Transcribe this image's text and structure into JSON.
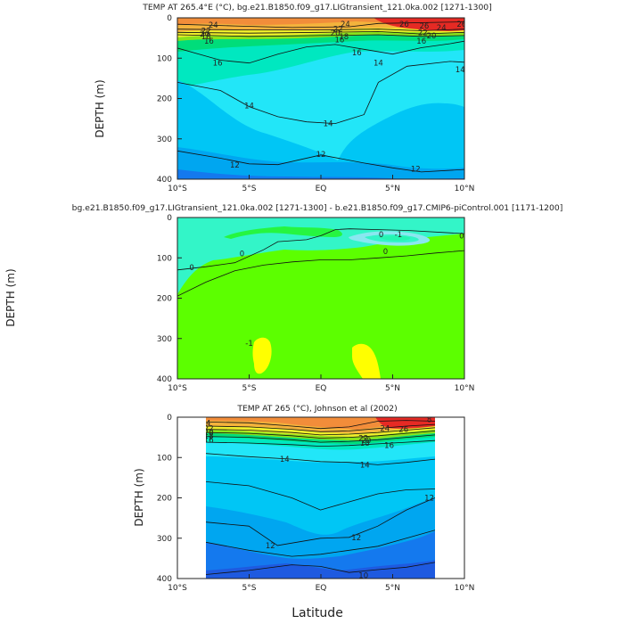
{
  "figure": {
    "x_common_label": "Latitude",
    "colors": {
      "c10": "#1e5ae0",
      "c11": "#1479ee",
      "c12": "#00a6f0",
      "c13": "#00c6f5",
      "c14": "#22e6f8",
      "c15": "#00e8c0",
      "c16": "#00dd7a",
      "c17": "#3fe33f",
      "c18": "#8ae21c",
      "c19": "#c8e51c",
      "c20": "#eeee2a",
      "c21": "#f7d23c",
      "c22": "#f4b33c",
      "c23": "#f2a242",
      "c24": "#f28d3a",
      "c25": "#ee6a2a",
      "c26": "#ea4a2a",
      "c27": "#e62a24",
      "c28": "#d81e2a",
      "d_cyan": "#33f5c8",
      "d_green": "#5cff00",
      "d_lime": "#26f540",
      "d_yellow": "#ffff00",
      "d_neg": "#8ae7f0"
    }
  },
  "chart_data": [
    {
      "type": "heatmap",
      "title": "TEMP AT 265.4°E (°C), bg.e21.B1850.f09_g17.LIGtransient_121.0ka.002 [1271-1300]",
      "xlabel": "",
      "ylabel": "DEPTH (m)",
      "x_ticks": [
        "10°S",
        "5°S",
        "EQ",
        "5°N",
        "10°N"
      ],
      "x_tick_values": [
        -10,
        -5,
        0,
        5,
        10
      ],
      "y_ticks": [
        "0",
        "100",
        "200",
        "300",
        "400"
      ],
      "y_tick_values": [
        0,
        100,
        200,
        300,
        400
      ],
      "xlim": [
        -10,
        10
      ],
      "ylim": [
        400,
        0
      ],
      "contour_labels": [
        {
          "text": "24",
          "x": -7.5,
          "y": 18
        },
        {
          "text": "22",
          "x": -8.0,
          "y": 32
        },
        {
          "text": "22",
          "x": 1.2,
          "y": 28
        },
        {
          "text": "20",
          "x": -8.1,
          "y": 40
        },
        {
          "text": "20",
          "x": 1.0,
          "y": 38
        },
        {
          "text": "18",
          "x": -8.0,
          "y": 46
        },
        {
          "text": "18",
          "x": 1.6,
          "y": 46
        },
        {
          "text": "16",
          "x": -7.8,
          "y": 58
        },
        {
          "text": "16",
          "x": 1.3,
          "y": 54
        },
        {
          "text": "16",
          "x": 7.0,
          "y": 58
        },
        {
          "text": "16",
          "x": -7.2,
          "y": 112
        },
        {
          "text": "16",
          "x": 2.5,
          "y": 86
        },
        {
          "text": "14",
          "x": 4.0,
          "y": 112
        },
        {
          "text": "14",
          "x": 9.7,
          "y": 128
        },
        {
          "text": "14",
          "x": -5.0,
          "y": 218
        },
        {
          "text": "14",
          "x": 0.5,
          "y": 262
        },
        {
          "text": "26",
          "x": 5.8,
          "y": 16
        },
        {
          "text": "26",
          "x": 7.2,
          "y": 20
        },
        {
          "text": "26",
          "x": 9.8,
          "y": 16
        },
        {
          "text": "24",
          "x": 1.7,
          "y": 16
        },
        {
          "text": "24",
          "x": 8.4,
          "y": 24
        },
        {
          "text": "22",
          "x": 7.1,
          "y": 36
        },
        {
          "text": "20",
          "x": 7.7,
          "y": 44
        },
        {
          "text": "12",
          "x": -6.0,
          "y": 365
        },
        {
          "text": "12",
          "x": 0.0,
          "y": 338
        },
        {
          "text": "12",
          "x": 6.6,
          "y": 375
        }
      ],
      "contour_lines": [
        {
          "level": 24,
          "points": [
            [
              -10,
              16
            ],
            [
              -6,
              20
            ],
            [
              -2,
              24
            ],
            [
              2,
              22
            ],
            [
              4,
              14
            ],
            [
              10,
              10
            ]
          ]
        },
        {
          "level": 22,
          "points": [
            [
              -10,
              28
            ],
            [
              -5,
              30
            ],
            [
              0,
              30
            ],
            [
              4,
              28
            ],
            [
              7,
              32
            ],
            [
              10,
              28
            ]
          ]
        },
        {
          "level": 20,
          "points": [
            [
              -10,
              36
            ],
            [
              -5,
              38
            ],
            [
              0,
              36
            ],
            [
              4,
              34
            ],
            [
              7,
              40
            ],
            [
              10,
              36
            ]
          ]
        },
        {
          "level": 18,
          "points": [
            [
              -10,
              42
            ],
            [
              -5,
              46
            ],
            [
              0,
              44
            ],
            [
              4,
              42
            ],
            [
              7,
              46
            ],
            [
              10,
              44
            ]
          ]
        },
        {
          "level": 16,
          "points": [
            [
              -10,
              75
            ],
            [
              -8,
              95
            ],
            [
              -7,
              105
            ],
            [
              -5,
              112
            ],
            [
              -3,
              90
            ],
            [
              -1,
              72
            ],
            [
              1,
              66
            ],
            [
              3,
              78
            ],
            [
              5,
              90
            ],
            [
              7,
              74
            ],
            [
              9,
              64
            ],
            [
              10,
              58
            ]
          ]
        },
        {
          "level": 14,
          "points": [
            [
              -10,
              160
            ],
            [
              -7,
              180
            ],
            [
              -5,
              220
            ],
            [
              -3,
              245
            ],
            [
              -1,
              258
            ],
            [
              1,
              262
            ],
            [
              3,
              240
            ],
            [
              4,
              160
            ],
            [
              6,
              120
            ],
            [
              9,
              108
            ],
            [
              10,
              110
            ]
          ]
        },
        {
          "level": 12,
          "points": [
            [
              -10,
              330
            ],
            [
              -7,
              348
            ],
            [
              -5,
              362
            ],
            [
              -3,
              364
            ],
            [
              0,
              340
            ],
            [
              3,
              360
            ],
            [
              5,
              372
            ],
            [
              7,
              382
            ],
            [
              10,
              376
            ]
          ]
        }
      ]
    },
    {
      "type": "heatmap",
      "title": "bg.e21.B1850.f09_g17.LIGtransient_121.0ka.002 [1271-1300] - b.e21.B1850.f09_g17.CMIP6-piControl.001 [1171-1200]",
      "xlabel": "",
      "ylabel": "DEPTH (m)",
      "x_ticks": [
        "10°S",
        "5°S",
        "EQ",
        "5°N",
        "10°N"
      ],
      "x_tick_values": [
        -10,
        -5,
        0,
        5,
        10
      ],
      "y_ticks": [
        "0",
        "100",
        "200",
        "300",
        "400"
      ],
      "y_tick_values": [
        0,
        100,
        200,
        300,
        400
      ],
      "xlim": [
        -10,
        10
      ],
      "ylim": [
        400,
        0
      ],
      "contour_labels": [
        {
          "text": "0",
          "x": -9.0,
          "y": 124
        },
        {
          "text": "0",
          "x": -5.5,
          "y": 90
        },
        {
          "text": "0",
          "x": 4.2,
          "y": 42
        },
        {
          "text": "0",
          "x": 4.5,
          "y": 84
        },
        {
          "text": "0",
          "x": 9.8,
          "y": 45
        },
        {
          "text": "-1",
          "x": 5.4,
          "y": 42
        },
        {
          "text": "-1",
          "x": -5.0,
          "y": 312
        }
      ],
      "contour_lines": [
        {
          "level": 0,
          "points": [
            [
              -10,
              195
            ],
            [
              -8,
              160
            ],
            [
              -6,
              132
            ],
            [
              -4,
              118
            ],
            [
              -2,
              110
            ],
            [
              0,
              105
            ],
            [
              2,
              105
            ],
            [
              4,
              100
            ],
            [
              6,
              95
            ],
            [
              8,
              88
            ],
            [
              10,
              82
            ]
          ]
        },
        {
          "level": 0,
          "points": [
            [
              -10,
              130
            ],
            [
              -8,
              122
            ],
            [
              -6,
              112
            ],
            [
              -4,
              80
            ],
            [
              -3,
              60
            ],
            [
              -1,
              55
            ],
            [
              0,
              45
            ],
            [
              1,
              30
            ],
            [
              2,
              28
            ],
            [
              4,
              30
            ],
            [
              6,
              32
            ],
            [
              10,
              40
            ]
          ]
        }
      ]
    },
    {
      "type": "heatmap",
      "title": "TEMP AT 265 (°C), Johnson et al (2002)",
      "xlabel": "Latitude",
      "ylabel": "DEPTH (m)",
      "x_ticks": [
        "10°S",
        "5°S",
        "EQ",
        "5°N",
        "10°N"
      ],
      "x_tick_values": [
        -10,
        -5,
        0,
        5,
        10
      ],
      "y_ticks": [
        "0",
        "100",
        "200",
        "300",
        "400"
      ],
      "y_tick_values": [
        0,
        100,
        200,
        300,
        400
      ],
      "xlim": [
        -10,
        10
      ],
      "ylim": [
        400,
        0
      ],
      "data_x_range": [
        -8,
        8
      ],
      "contour_labels": [
        {
          "text": "24",
          "x": -8.0,
          "y": 14
        },
        {
          "text": "22",
          "x": -7.8,
          "y": 28
        },
        {
          "text": "20",
          "x": -7.8,
          "y": 38
        },
        {
          "text": "18",
          "x": -7.8,
          "y": 46
        },
        {
          "text": "16",
          "x": -7.8,
          "y": 56
        },
        {
          "text": "14",
          "x": -2.5,
          "y": 104
        },
        {
          "text": "14",
          "x": 3.1,
          "y": 118
        },
        {
          "text": "12",
          "x": -3.5,
          "y": 318
        },
        {
          "text": "12",
          "x": 2.5,
          "y": 298
        },
        {
          "text": "12",
          "x": 7.6,
          "y": 200
        },
        {
          "text": "10",
          "x": 3.0,
          "y": 392
        },
        {
          "text": "10",
          "x": -7.0,
          "y": 408
        },
        {
          "text": "26",
          "x": 5.8,
          "y": 30
        },
        {
          "text": "24",
          "x": 4.5,
          "y": 28
        },
        {
          "text": "22",
          "x": 3.0,
          "y": 52
        },
        {
          "text": "20",
          "x": 3.2,
          "y": 58
        },
        {
          "text": "18",
          "x": 3.1,
          "y": 64
        },
        {
          "text": "16",
          "x": 4.8,
          "y": 70
        },
        {
          "text": "8",
          "x": 7.6,
          "y": 6
        }
      ],
      "contour_lines": [
        {
          "level": 24,
          "points": [
            [
              -8,
              12
            ],
            [
              -5,
              14
            ],
            [
              -2,
              22
            ],
            [
              0,
              28
            ],
            [
              2,
              24
            ],
            [
              4,
              10
            ],
            [
              6,
              8
            ],
            [
              8,
              10
            ]
          ]
        },
        {
          "level": 22,
          "points": [
            [
              -8,
              22
            ],
            [
              -5,
              24
            ],
            [
              -2,
              30
            ],
            [
              0,
              36
            ],
            [
              2,
              34
            ],
            [
              4,
              28
            ],
            [
              6,
              22
            ],
            [
              8,
              18
            ]
          ]
        },
        {
          "level": 20,
          "points": [
            [
              -8,
              30
            ],
            [
              -5,
              32
            ],
            [
              -2,
              38
            ],
            [
              0,
              44
            ],
            [
              2,
              42
            ],
            [
              4,
              38
            ],
            [
              6,
              32
            ],
            [
              8,
              26
            ]
          ]
        },
        {
          "level": 18,
          "points": [
            [
              -8,
              38
            ],
            [
              -5,
              40
            ],
            [
              -2,
              46
            ],
            [
              0,
              52
            ],
            [
              2,
              50
            ],
            [
              4,
              46
            ],
            [
              6,
              40
            ],
            [
              8,
              34
            ]
          ]
        },
        {
          "level": 16,
          "points": [
            [
              -8,
              48
            ],
            [
              -5,
              50
            ],
            [
              -2,
              56
            ],
            [
              0,
              62
            ],
            [
              2,
              60
            ],
            [
              4,
              56
            ],
            [
              6,
              50
            ],
            [
              8,
              44
            ]
          ]
        },
        {
          "level": 15,
          "points": [
            [
              -8,
              62
            ],
            [
              -5,
              64
            ],
            [
              -2,
              68
            ],
            [
              0,
              72
            ],
            [
              2,
              70
            ],
            [
              4,
              66
            ],
            [
              6,
              62
            ],
            [
              8,
              58
            ]
          ]
        },
        {
          "level": 14,
          "points": [
            [
              -8,
              90
            ],
            [
              -5,
              98
            ],
            [
              -2,
              104
            ],
            [
              0,
              110
            ],
            [
              2,
              112
            ],
            [
              4,
              118
            ],
            [
              6,
              112
            ],
            [
              8,
              104
            ]
          ]
        },
        {
          "level": 13,
          "points": [
            [
              -8,
              160
            ],
            [
              -5,
              170
            ],
            [
              -2,
              200
            ],
            [
              0,
              230
            ],
            [
              2,
              210
            ],
            [
              4,
              190
            ],
            [
              6,
              180
            ],
            [
              8,
              178
            ]
          ]
        },
        {
          "level": 12,
          "points": [
            [
              -8,
              260
            ],
            [
              -5,
              270
            ],
            [
              -3,
              318
            ],
            [
              0,
              300
            ],
            [
              2,
              298
            ],
            [
              4,
              270
            ],
            [
              6,
              230
            ],
            [
              8,
              200
            ]
          ]
        },
        {
          "level": 11,
          "points": [
            [
              -8,
              310
            ],
            [
              -5,
              330
            ],
            [
              -2,
              345
            ],
            [
              0,
              340
            ],
            [
              2,
              330
            ],
            [
              4,
              320
            ],
            [
              6,
              300
            ],
            [
              8,
              280
            ]
          ]
        },
        {
          "level": 10,
          "points": [
            [
              -8,
              390
            ],
            [
              -5,
              380
            ],
            [
              -2,
              366
            ],
            [
              0,
              370
            ],
            [
              2,
              385
            ],
            [
              4,
              378
            ],
            [
              6,
              372
            ],
            [
              8,
              360
            ]
          ]
        }
      ]
    }
  ]
}
